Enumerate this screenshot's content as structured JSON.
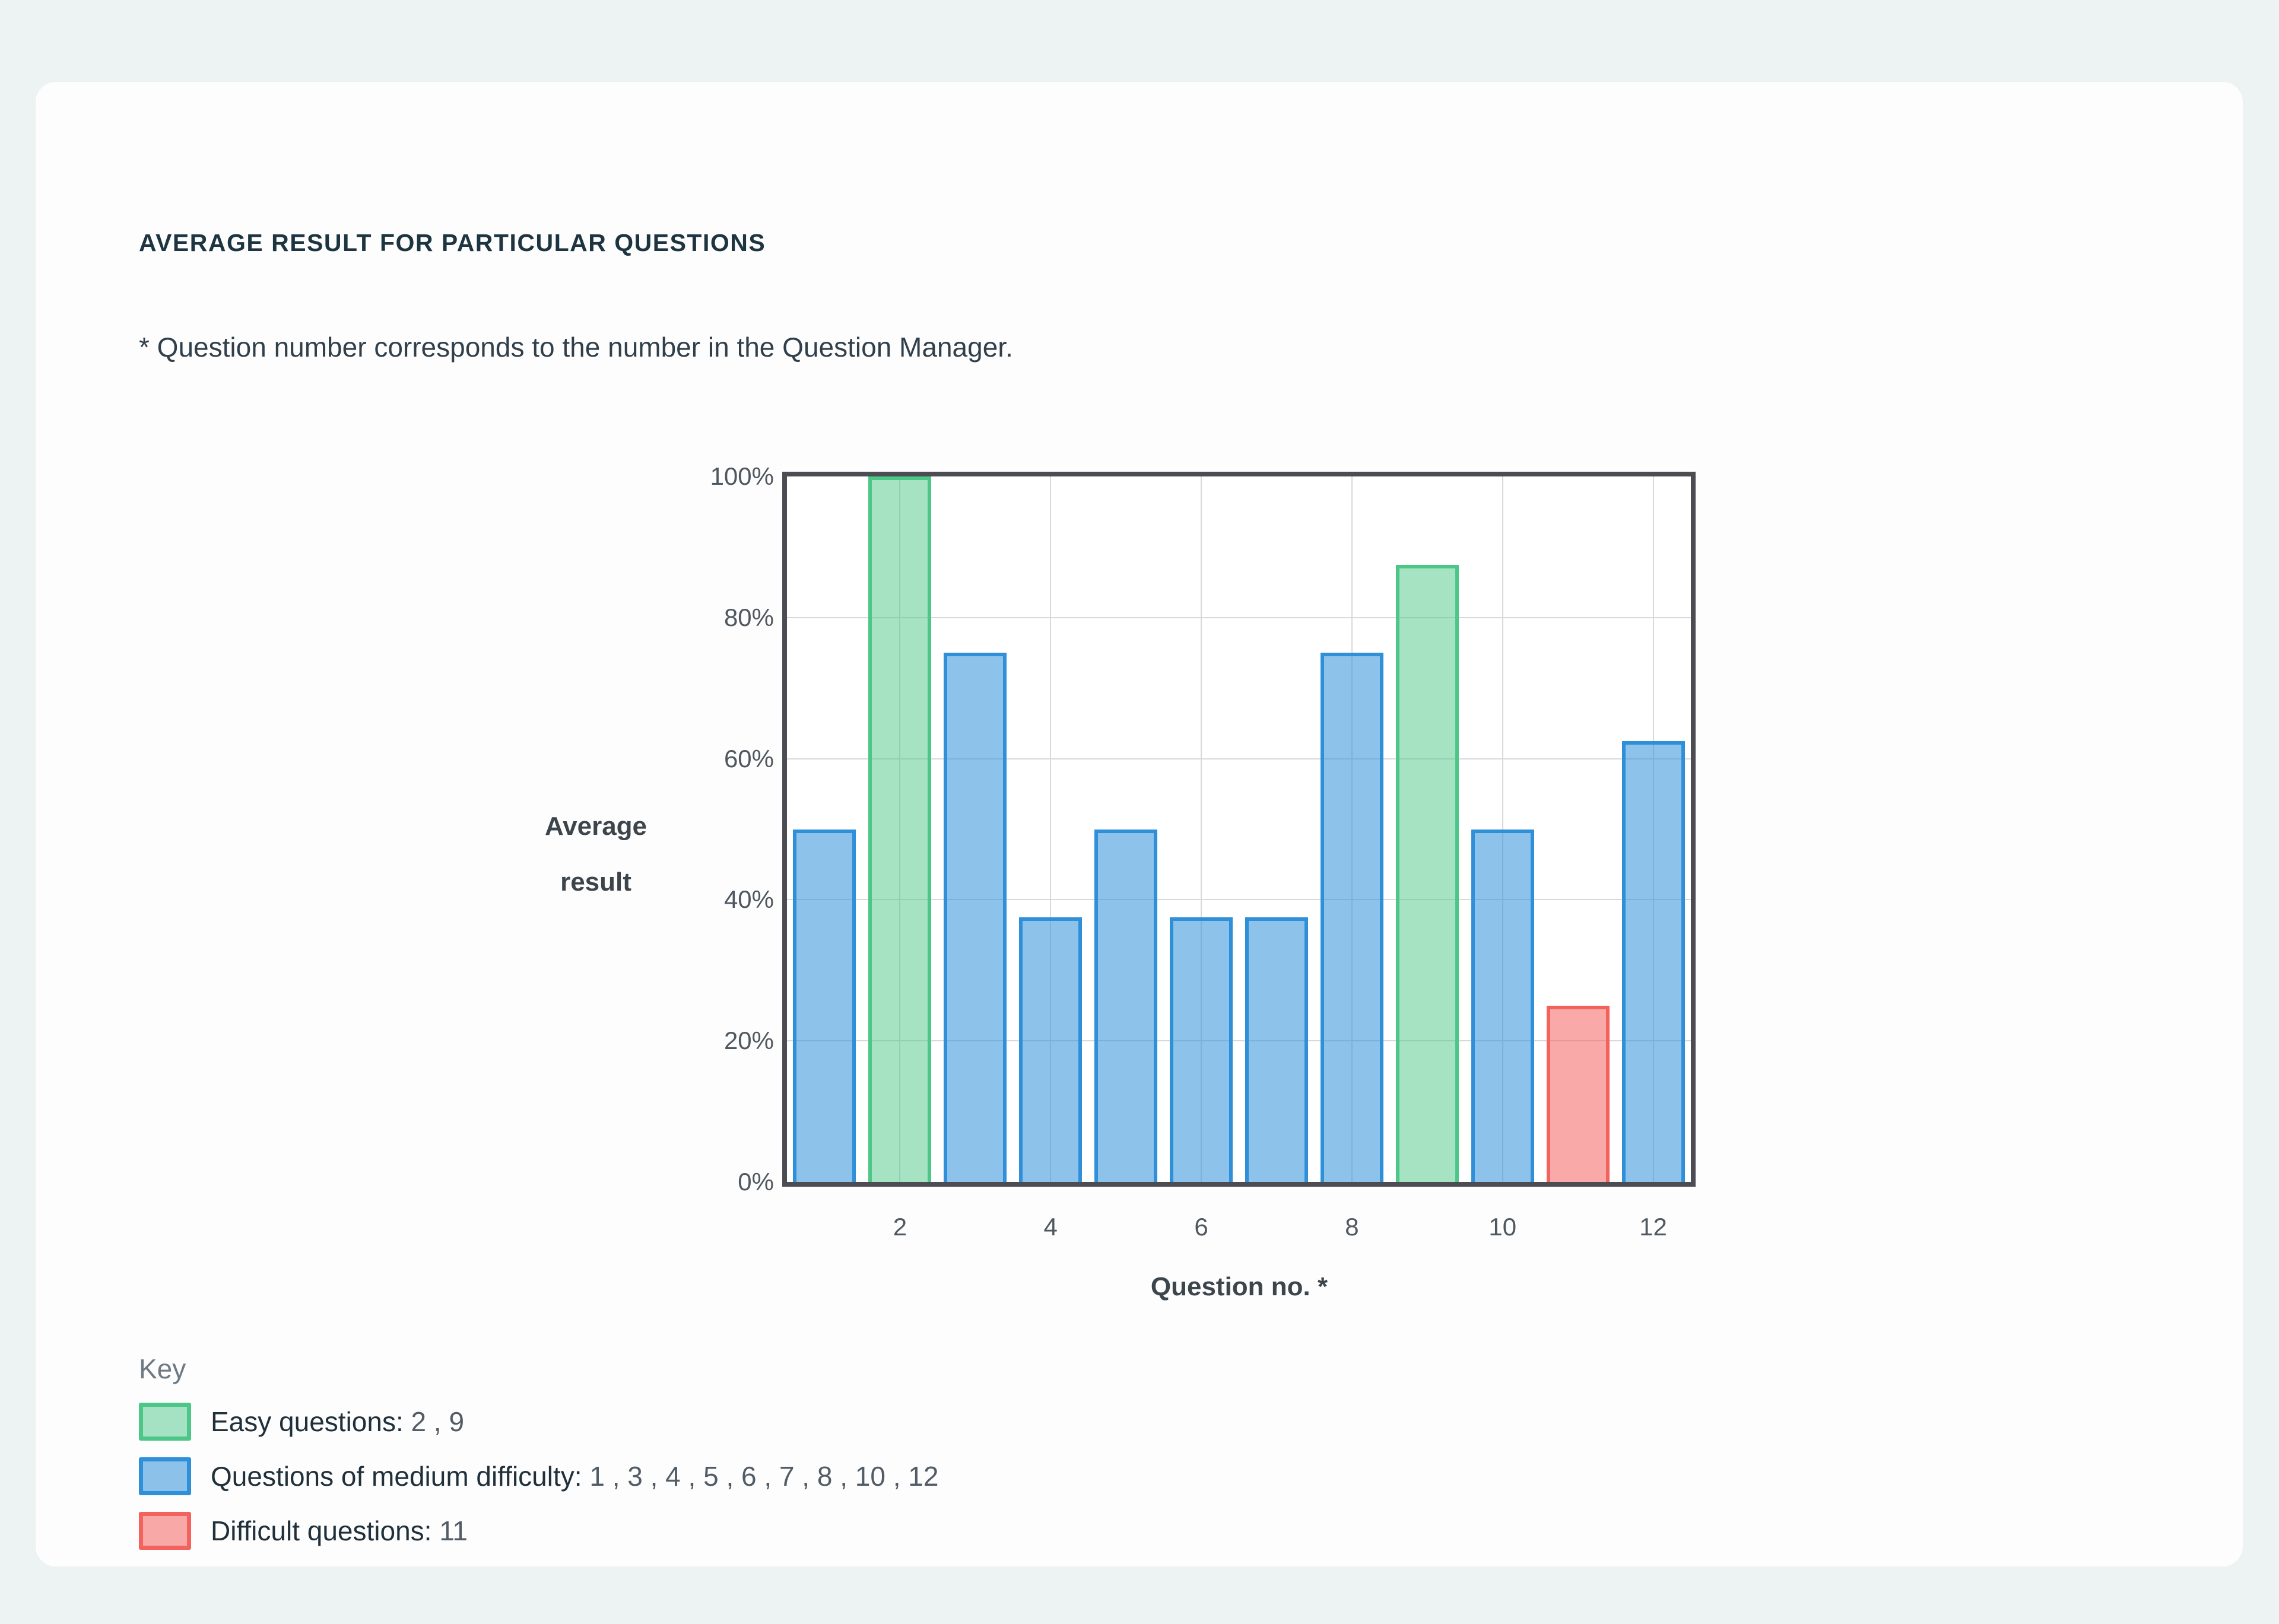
{
  "page": {
    "background_color": "#edf2f2",
    "card_color": "#fdfdfe"
  },
  "header": {
    "title": "AVERAGE RESULT FOR PARTICULAR QUESTIONS",
    "note": "* Question number corresponds to the number in the Question Manager."
  },
  "chart_data": {
    "type": "bar",
    "title": "",
    "xlabel": "Question no. *",
    "ylabel_lines": [
      "Average",
      "result"
    ],
    "categories": [
      1,
      2,
      3,
      4,
      5,
      6,
      7,
      8,
      9,
      10,
      11,
      12
    ],
    "values": [
      50,
      100,
      75,
      37.5,
      50,
      37.5,
      37.5,
      75,
      87.5,
      50,
      25,
      62.5
    ],
    "difficulty": [
      "medium",
      "easy",
      "medium",
      "medium",
      "medium",
      "medium",
      "medium",
      "medium",
      "easy",
      "medium",
      "difficult",
      "medium"
    ],
    "ylim": [
      0,
      100
    ],
    "y_ticks": [
      0,
      20,
      40,
      60,
      80,
      100
    ],
    "y_tick_suffix": "%",
    "x_ticks": [
      2,
      4,
      6,
      8,
      10,
      12
    ],
    "grid": true,
    "gridline_y_percents": [
      20,
      40,
      60,
      80
    ],
    "frame_color": "#4c4c53",
    "gridline_color": "#d8d9dd",
    "colors": {
      "easy": {
        "fill": "rgba(76,199,135,0.50)",
        "border": "#4cc787"
      },
      "medium": {
        "fill": "rgba(47,143,216,0.55)",
        "border": "#2f8fd8"
      },
      "difficult": {
        "fill": "rgba(244,98,94,0.55)",
        "border": "#f4625e"
      }
    }
  },
  "key": {
    "heading": "Key",
    "items": [
      {
        "difficulty": "easy",
        "label": "Easy questions:",
        "values": "2 , 9"
      },
      {
        "difficulty": "medium",
        "label": "Questions of medium difficulty:",
        "values": "1 , 3 , 4 , 5 , 6 , 7 , 8 , 10 , 12"
      },
      {
        "difficulty": "difficult",
        "label": "Difficult questions:",
        "values": "11"
      }
    ]
  }
}
